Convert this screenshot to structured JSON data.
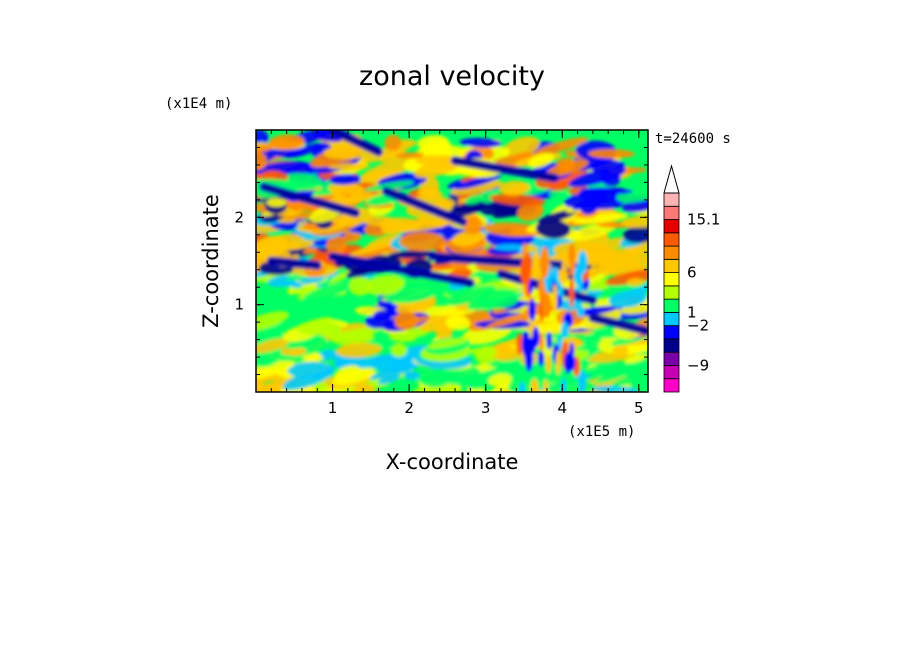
{
  "chart_data": {
    "type": "heatmap",
    "title": "zonal velocity",
    "xlabel": "X-coordinate",
    "ylabel": "Z-coordinate",
    "x_scale_label": "(x1E5 m)",
    "y_scale_label": "(x1E4 m)",
    "time_label": "t=24600 s",
    "x_ticks": [
      "1",
      "2",
      "3",
      "4",
      "5"
    ],
    "y_ticks": [
      "1",
      "2"
    ],
    "xlim": [
      0,
      5.12
    ],
    "ylim": [
      0,
      3.0
    ],
    "colorbar": {
      "labels": [
        "15.1",
        "6",
        "1",
        "−2",
        "−9"
      ],
      "colors": [
        "#ff00c8",
        "#c800b4",
        "#7a00a8",
        "#00008c",
        "#0000ff",
        "#00c8ff",
        "#00ff64",
        "#b4ff00",
        "#ffff00",
        "#ffc800",
        "#ff8c00",
        "#ff5a00",
        "#e60000",
        "#ff7878",
        "#ffb4b4",
        "#ffffff"
      ]
    }
  }
}
